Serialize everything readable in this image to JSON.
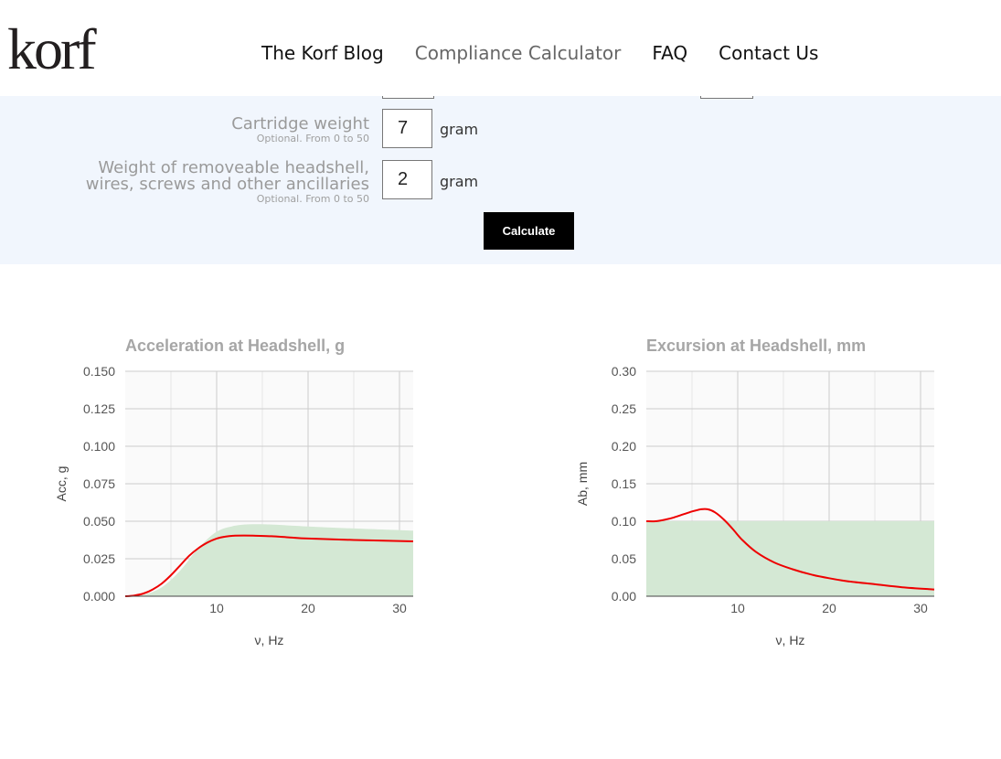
{
  "header": {
    "logo_text": "korf",
    "nav": [
      {
        "label": "The Korf Blog",
        "active": false
      },
      {
        "label": "Compliance Calculator",
        "active": true
      },
      {
        "label": "FAQ",
        "active": false
      },
      {
        "label": "Contact Us",
        "active": false
      }
    ]
  },
  "form": {
    "fields": [
      {
        "label": "Cartridge weight",
        "hint": "Optional. From 0 to 50",
        "value": "7",
        "unit": "gram"
      },
      {
        "label_line1": "Weight of removeable headshell,",
        "label_line2": "wires, screws and other ancillaries",
        "hint": "Optional. From 0 to 50",
        "value": "2",
        "unit": "gram"
      }
    ],
    "calculate_label": "Calculate"
  },
  "colors": {
    "curve": "#ee0000",
    "fill": "#d4e8d4",
    "grid": "#cccccc",
    "title": "#a6a6a6"
  },
  "chart_data": [
    {
      "type": "line",
      "title": "Acceleration at Headshell, g",
      "xlabel": "ν, Hz",
      "ylabel": "Acc, g",
      "xlim": [
        0,
        31.5
      ],
      "ylim": [
        0,
        0.15
      ],
      "xticks": [
        10,
        20,
        30
      ],
      "yticks": [
        "0.000",
        "0.025",
        "0.050",
        "0.075",
        "0.100",
        "0.125",
        "0.150"
      ],
      "grid": true,
      "series": [
        {
          "kind": "area",
          "x": [
            0,
            2,
            4,
            6,
            8,
            10,
            12,
            14,
            16,
            20,
            25,
            31.5
          ],
          "y": [
            0,
            0.001,
            0.006,
            0.017,
            0.032,
            0.043,
            0.047,
            0.048,
            0.0478,
            0.0465,
            0.0452,
            0.0437
          ]
        },
        {
          "kind": "line",
          "x": [
            0,
            1,
            2,
            3,
            4,
            5,
            6,
            7,
            8,
            9,
            10,
            11,
            12,
            13,
            14,
            16,
            18,
            20,
            25,
            31.5
          ],
          "y": [
            0,
            0.0005,
            0.0018,
            0.0045,
            0.0085,
            0.014,
            0.0205,
            0.027,
            0.032,
            0.0358,
            0.0385,
            0.0398,
            0.0404,
            0.0405,
            0.0404,
            0.04,
            0.0392,
            0.0385,
            0.0375,
            0.0366
          ]
        }
      ]
    },
    {
      "type": "line",
      "title": "Excursion at Headshell, mm",
      "xlabel": "ν, Hz",
      "ylabel": "Ab, mm",
      "xlim": [
        0,
        31.5
      ],
      "ylim": [
        0,
        0.3
      ],
      "xticks": [
        10,
        20,
        30
      ],
      "yticks": [
        "0.00",
        "0.05",
        "0.10",
        "0.15",
        "0.20",
        "0.25",
        "0.30"
      ],
      "grid": true,
      "series": [
        {
          "kind": "area",
          "x": [
            0,
            31.5
          ],
          "y": [
            0.1,
            0.1
          ]
        },
        {
          "kind": "line",
          "x": [
            0,
            1,
            2,
            3,
            4,
            5,
            6,
            6.7,
            7.5,
            8.5,
            9.5,
            10.5,
            12,
            14,
            16,
            18,
            20,
            22,
            25,
            28,
            31.5
          ],
          "y": [
            0.1,
            0.1,
            0.102,
            0.105,
            0.109,
            0.113,
            0.116,
            0.116,
            0.112,
            0.102,
            0.089,
            0.075,
            0.059,
            0.045,
            0.036,
            0.029,
            0.024,
            0.02,
            0.016,
            0.012,
            0.009
          ]
        }
      ]
    }
  ]
}
